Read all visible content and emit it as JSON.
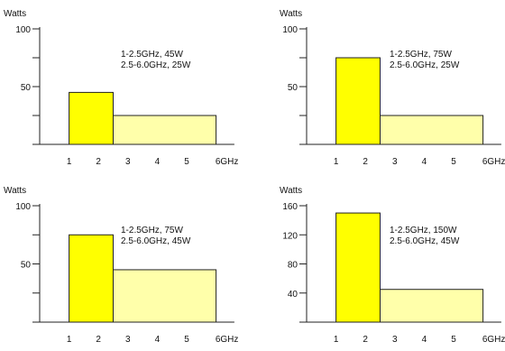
{
  "colors": {
    "band_low": "#ffff00",
    "band_high": "#ffffaa",
    "outline": "#222222"
  },
  "chart_data": [
    {
      "type": "bar",
      "ylabel": "Watts",
      "ylim": [
        0,
        100
      ],
      "yticks": [
        0,
        25,
        50,
        75,
        100
      ],
      "ytick_labels": [
        "",
        "",
        "50",
        "",
        "100"
      ],
      "xlim": [
        0,
        6.5
      ],
      "xticks": [
        1,
        2,
        3,
        4,
        5,
        6
      ],
      "xtick_labels": [
        "1",
        "2",
        "3",
        "4",
        "5",
        "6GHz"
      ],
      "bars": [
        {
          "x_start": 1,
          "x_end": 2.5,
          "value": 45
        },
        {
          "x_start": 2.5,
          "x_end": 6.0,
          "value": 25
        }
      ],
      "annotations": [
        "1-2.5GHz, 45W",
        "2.5-6.0GHz, 25W"
      ]
    },
    {
      "type": "bar",
      "ylabel": "Watts",
      "ylim": [
        0,
        100
      ],
      "yticks": [
        0,
        25,
        50,
        75,
        100
      ],
      "ytick_labels": [
        "",
        "",
        "50",
        "",
        "100"
      ],
      "xlim": [
        0,
        6.5
      ],
      "xticks": [
        1,
        2,
        3,
        4,
        5,
        6
      ],
      "xtick_labels": [
        "1",
        "2",
        "3",
        "4",
        "5",
        "6GHz"
      ],
      "bars": [
        {
          "x_start": 1,
          "x_end": 2.5,
          "value": 75
        },
        {
          "x_start": 2.5,
          "x_end": 6.0,
          "value": 25
        }
      ],
      "annotations": [
        "1-2.5GHz, 75W",
        "2.5-6.0GHz, 25W"
      ]
    },
    {
      "type": "bar",
      "ylabel": "Watts",
      "ylim": [
        0,
        100
      ],
      "yticks": [
        0,
        25,
        50,
        75,
        100
      ],
      "ytick_labels": [
        "",
        "",
        "50",
        "",
        "100"
      ],
      "xlim": [
        0,
        6.5
      ],
      "xticks": [
        1,
        2,
        3,
        4,
        5,
        6
      ],
      "xtick_labels": [
        "1",
        "2",
        "3",
        "4",
        "5",
        "6GHz"
      ],
      "bars": [
        {
          "x_start": 1,
          "x_end": 2.5,
          "value": 75
        },
        {
          "x_start": 2.5,
          "x_end": 6.0,
          "value": 45
        }
      ],
      "annotations": [
        "1-2.5GHz, 75W",
        "2.5-6.0GHz, 45W"
      ]
    },
    {
      "type": "bar",
      "ylabel": "Watts",
      "ylim": [
        0,
        160
      ],
      "yticks": [
        0,
        40,
        80,
        120,
        160
      ],
      "ytick_labels": [
        "",
        "40",
        "80",
        "120",
        "160"
      ],
      "xlim": [
        0,
        6.5
      ],
      "xticks": [
        1,
        2,
        3,
        4,
        5,
        6
      ],
      "xtick_labels": [
        "1",
        "2",
        "3",
        "4",
        "5",
        "6GHz"
      ],
      "bars": [
        {
          "x_start": 1,
          "x_end": 2.5,
          "value": 150
        },
        {
          "x_start": 2.5,
          "x_end": 6.0,
          "value": 45
        }
      ],
      "annotations": [
        "1-2.5GHz, 150W",
        "2.5-6.0GHz, 45W"
      ]
    }
  ]
}
